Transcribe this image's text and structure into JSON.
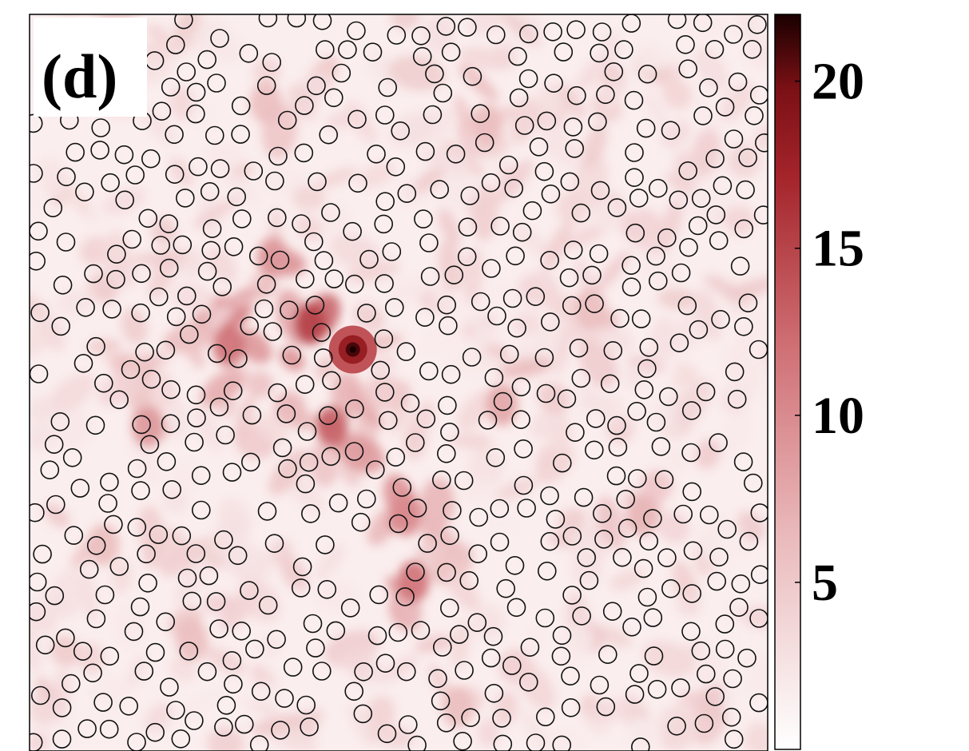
{
  "panel_label": "(d)",
  "colors": {
    "low": "#ffffff",
    "mid": "#d9858a",
    "high": "#9e1b20",
    "max": "#1a0000",
    "scatterer_stroke": "#111111"
  },
  "chart_data": {
    "type": "heatmap",
    "title": "",
    "xlabel": "",
    "ylabel": "",
    "colorbar": {
      "range": [
        0,
        22
      ],
      "ticks": [
        5,
        10,
        15,
        20
      ],
      "tick_labels": [
        "5",
        "10",
        "15",
        "20"
      ]
    },
    "peak": {
      "x": 0.438,
      "y": 0.455,
      "value": 22
    },
    "hotspots": [
      {
        "x": 0.38,
        "y": 0.42,
        "value": 15
      },
      {
        "x": 0.27,
        "y": 0.45,
        "value": 12
      },
      {
        "x": 0.41,
        "y": 0.56,
        "value": 13
      },
      {
        "x": 0.52,
        "y": 0.77,
        "value": 12
      },
      {
        "x": 0.51,
        "y": 0.68,
        "value": 10
      },
      {
        "x": 0.33,
        "y": 0.33,
        "value": 9
      },
      {
        "x": 0.16,
        "y": 0.56,
        "value": 9
      },
      {
        "x": 0.64,
        "y": 0.53,
        "value": 8
      },
      {
        "x": 0.83,
        "y": 0.68,
        "value": 7
      },
      {
        "x": 0.32,
        "y": 0.12,
        "value": 6
      },
      {
        "x": 0.62,
        "y": 0.15,
        "value": 6
      },
      {
        "x": 0.22,
        "y": 0.85,
        "value": 6
      },
      {
        "x": 0.58,
        "y": 0.94,
        "value": 6
      },
      {
        "x": 0.76,
        "y": 0.4,
        "value": 6
      },
      {
        "x": 0.1,
        "y": 0.72,
        "value": 6
      }
    ],
    "scatterers": {
      "count": 560,
      "arrangement": "random-disks"
    }
  }
}
